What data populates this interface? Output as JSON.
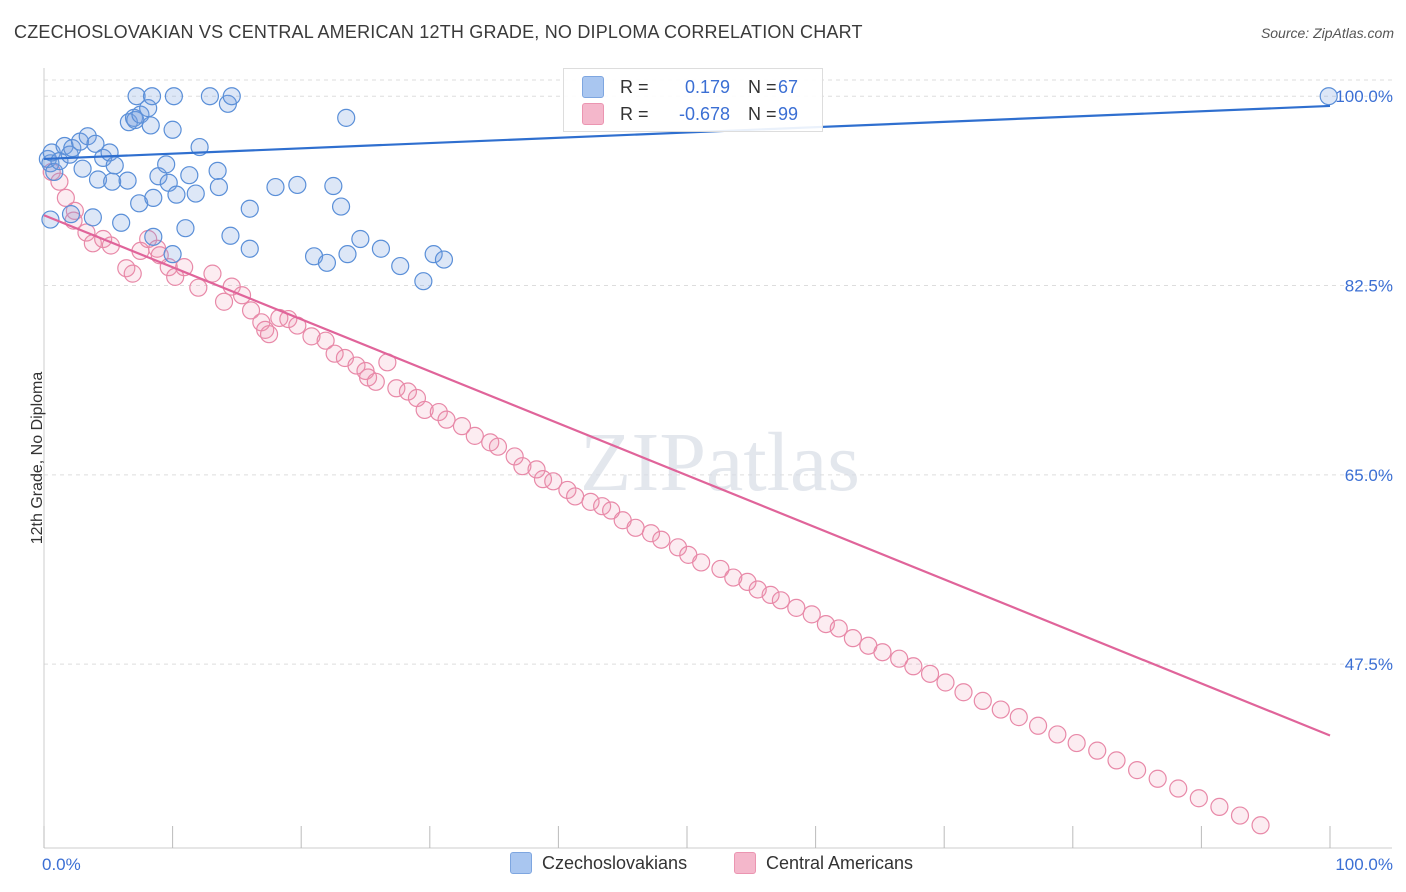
{
  "title": "CZECHOSLOVAKIAN VS CENTRAL AMERICAN 12TH GRADE, NO DIPLOMA CORRELATION CHART",
  "source": "Source: ZipAtlas.com",
  "watermark": "ZIPatlas",
  "legend": {
    "rows": [
      {
        "r_label": "R =",
        "r_value": "0.179",
        "n_label": "N =",
        "n_value": "67",
        "color": "#a9c6f0"
      },
      {
        "r_label": "R =",
        "r_value": "-0.678",
        "n_label": "N =",
        "n_value": "99",
        "color": "#f4b7cb"
      }
    ]
  },
  "bottom_legend": [
    {
      "label": "Czechoslovakians",
      "color": "#a9c6f0"
    },
    {
      "label": "Central Americans",
      "color": "#f4b7cb"
    }
  ],
  "colors": {
    "blue_stroke": "#5a8fd8",
    "blue_fill": "rgba(120,160,225,0.25)",
    "blue_line": "#2f6fcf",
    "pink_stroke": "#e889a8",
    "pink_fill": "rgba(240,150,180,0.18)",
    "pink_line": "#e0649a",
    "axis_text": "#3b6fd4",
    "grid": "#dddddd"
  },
  "chart_data": {
    "type": "scatter",
    "xlabel": "",
    "ylabel": "12th Grade, No Diploma",
    "xlim": [
      0,
      100
    ],
    "ylim": [
      30.5,
      101.5
    ],
    "x_tick_labels": [
      "0.0%",
      "100.0%"
    ],
    "y_ticks": [
      47.5,
      65.0,
      82.5,
      100.0
    ],
    "y_tick_labels": [
      "47.5%",
      "65.0%",
      "82.5%",
      "100.0%"
    ],
    "grid": true,
    "legend_position": "top-center",
    "series": [
      {
        "name": "Czechoslovakians",
        "color": "#5a8fd8",
        "points": [
          [
            0.3,
            94.2
          ],
          [
            0.5,
            93.8
          ],
          [
            0.8,
            93.0
          ],
          [
            0.6,
            94.8
          ],
          [
            1.2,
            94.0
          ],
          [
            1.6,
            95.4
          ],
          [
            2.0,
            94.6
          ],
          [
            2.2,
            95.2
          ],
          [
            2.8,
            95.8
          ],
          [
            3.4,
            96.3
          ],
          [
            3.0,
            93.3
          ],
          [
            4.0,
            95.6
          ],
          [
            4.6,
            94.3
          ],
          [
            5.1,
            94.8
          ],
          [
            4.2,
            92.3
          ],
          [
            5.3,
            92.1
          ],
          [
            6.5,
            92.2
          ],
          [
            5.5,
            93.6
          ],
          [
            6.6,
            97.6
          ],
          [
            7.0,
            98.0
          ],
          [
            7.1,
            97.8
          ],
          [
            7.5,
            98.3
          ],
          [
            8.1,
            98.9
          ],
          [
            8.3,
            97.3
          ],
          [
            7.4,
            90.1
          ],
          [
            8.5,
            90.6
          ],
          [
            8.9,
            92.6
          ],
          [
            9.5,
            93.7
          ],
          [
            9.7,
            92.0
          ],
          [
            10.0,
            96.9
          ],
          [
            10.3,
            90.9
          ],
          [
            11.3,
            92.7
          ],
          [
            11.8,
            91.0
          ],
          [
            12.1,
            95.3
          ],
          [
            13.5,
            93.1
          ],
          [
            13.6,
            91.6
          ],
          [
            14.3,
            99.3
          ],
          [
            16.0,
            89.6
          ],
          [
            18.0,
            91.6
          ],
          [
            19.7,
            91.8
          ],
          [
            22.5,
            91.7
          ],
          [
            23.1,
            89.8
          ],
          [
            23.5,
            98.0
          ],
          [
            23.6,
            85.4
          ],
          [
            24.6,
            86.8
          ],
          [
            26.2,
            85.9
          ],
          [
            27.7,
            84.3
          ],
          [
            29.5,
            82.9
          ],
          [
            30.3,
            85.4
          ],
          [
            31.1,
            84.9
          ],
          [
            0.5,
            88.6
          ],
          [
            2.1,
            89.1
          ],
          [
            3.8,
            88.8
          ],
          [
            6.0,
            88.3
          ],
          [
            8.5,
            87.0
          ],
          [
            10.0,
            85.4
          ],
          [
            11.0,
            87.8
          ],
          [
            14.5,
            87.1
          ],
          [
            16.0,
            85.9
          ],
          [
            21.0,
            85.2
          ],
          [
            22.0,
            84.6
          ],
          [
            7.2,
            100.0
          ],
          [
            8.4,
            100.0
          ],
          [
            10.1,
            100.0
          ],
          [
            12.9,
            100.0
          ],
          [
            14.6,
            100.0
          ],
          [
            99.9,
            100.0
          ]
        ]
      },
      {
        "name": "Central Americans",
        "color": "#e889a8",
        "points": [
          [
            0.6,
            93.0
          ],
          [
            1.2,
            92.1
          ],
          [
            1.7,
            90.6
          ],
          [
            2.4,
            89.4
          ],
          [
            2.3,
            88.5
          ],
          [
            3.3,
            87.4
          ],
          [
            3.8,
            86.4
          ],
          [
            4.6,
            86.8
          ],
          [
            5.2,
            86.2
          ],
          [
            6.4,
            84.1
          ],
          [
            6.9,
            83.6
          ],
          [
            7.5,
            85.7
          ],
          [
            8.1,
            86.8
          ],
          [
            8.8,
            85.9
          ],
          [
            9.0,
            85.3
          ],
          [
            9.7,
            84.2
          ],
          [
            10.2,
            83.3
          ],
          [
            10.9,
            84.2
          ],
          [
            12.0,
            82.3
          ],
          [
            13.1,
            83.6
          ],
          [
            14.0,
            81.0
          ],
          [
            14.6,
            82.4
          ],
          [
            15.4,
            81.6
          ],
          [
            16.1,
            80.2
          ],
          [
            16.9,
            79.1
          ],
          [
            17.2,
            78.4
          ],
          [
            17.5,
            78.0
          ],
          [
            18.3,
            79.5
          ],
          [
            19.0,
            79.4
          ],
          [
            19.7,
            78.8
          ],
          [
            20.8,
            77.8
          ],
          [
            21.9,
            77.4
          ],
          [
            22.6,
            76.2
          ],
          [
            23.4,
            75.8
          ],
          [
            24.3,
            75.1
          ],
          [
            25.0,
            74.6
          ],
          [
            25.2,
            74.0
          ],
          [
            25.8,
            73.6
          ],
          [
            26.7,
            75.4
          ],
          [
            27.4,
            73.0
          ],
          [
            28.3,
            72.7
          ],
          [
            29.0,
            72.1
          ],
          [
            29.6,
            71.0
          ],
          [
            30.7,
            70.8
          ],
          [
            31.3,
            70.1
          ],
          [
            32.5,
            69.5
          ],
          [
            33.5,
            68.6
          ],
          [
            34.7,
            68.0
          ],
          [
            35.3,
            67.6
          ],
          [
            36.6,
            66.7
          ],
          [
            37.2,
            65.8
          ],
          [
            38.3,
            65.5
          ],
          [
            38.8,
            64.6
          ],
          [
            39.6,
            64.4
          ],
          [
            40.7,
            63.6
          ],
          [
            41.3,
            63.0
          ],
          [
            42.5,
            62.5
          ],
          [
            43.4,
            62.1
          ],
          [
            44.1,
            61.7
          ],
          [
            45.0,
            60.8
          ],
          [
            46.0,
            60.1
          ],
          [
            47.2,
            59.6
          ],
          [
            48.0,
            59.0
          ],
          [
            49.3,
            58.3
          ],
          [
            50.1,
            57.6
          ],
          [
            51.1,
            56.9
          ],
          [
            52.6,
            56.3
          ],
          [
            53.6,
            55.5
          ],
          [
            54.7,
            55.1
          ],
          [
            55.5,
            54.4
          ],
          [
            56.5,
            53.9
          ],
          [
            57.3,
            53.4
          ],
          [
            58.5,
            52.7
          ],
          [
            59.7,
            52.1
          ],
          [
            60.8,
            51.2
          ],
          [
            61.8,
            50.8
          ],
          [
            62.9,
            49.9
          ],
          [
            64.1,
            49.2
          ],
          [
            65.2,
            48.6
          ],
          [
            66.5,
            48.0
          ],
          [
            67.6,
            47.3
          ],
          [
            68.9,
            46.6
          ],
          [
            70.1,
            45.8
          ],
          [
            71.5,
            44.9
          ],
          [
            73.0,
            44.1
          ],
          [
            74.4,
            43.3
          ],
          [
            75.8,
            42.6
          ],
          [
            77.3,
            41.8
          ],
          [
            78.8,
            41.0
          ],
          [
            80.3,
            40.2
          ],
          [
            81.9,
            39.5
          ],
          [
            83.4,
            38.6
          ],
          [
            85.0,
            37.7
          ],
          [
            86.6,
            36.9
          ],
          [
            88.2,
            36.0
          ],
          [
            89.8,
            35.1
          ],
          [
            91.4,
            34.3
          ],
          [
            93.0,
            33.5
          ],
          [
            94.6,
            32.6
          ]
        ]
      }
    ],
    "trend_lines": [
      {
        "series": "Czechoslovakians",
        "x": [
          0,
          100
        ],
        "y": [
          94.2,
          99.1
        ]
      },
      {
        "series": "Central Americans",
        "x": [
          0,
          100
        ],
        "y": [
          89.0,
          40.9
        ]
      }
    ]
  }
}
